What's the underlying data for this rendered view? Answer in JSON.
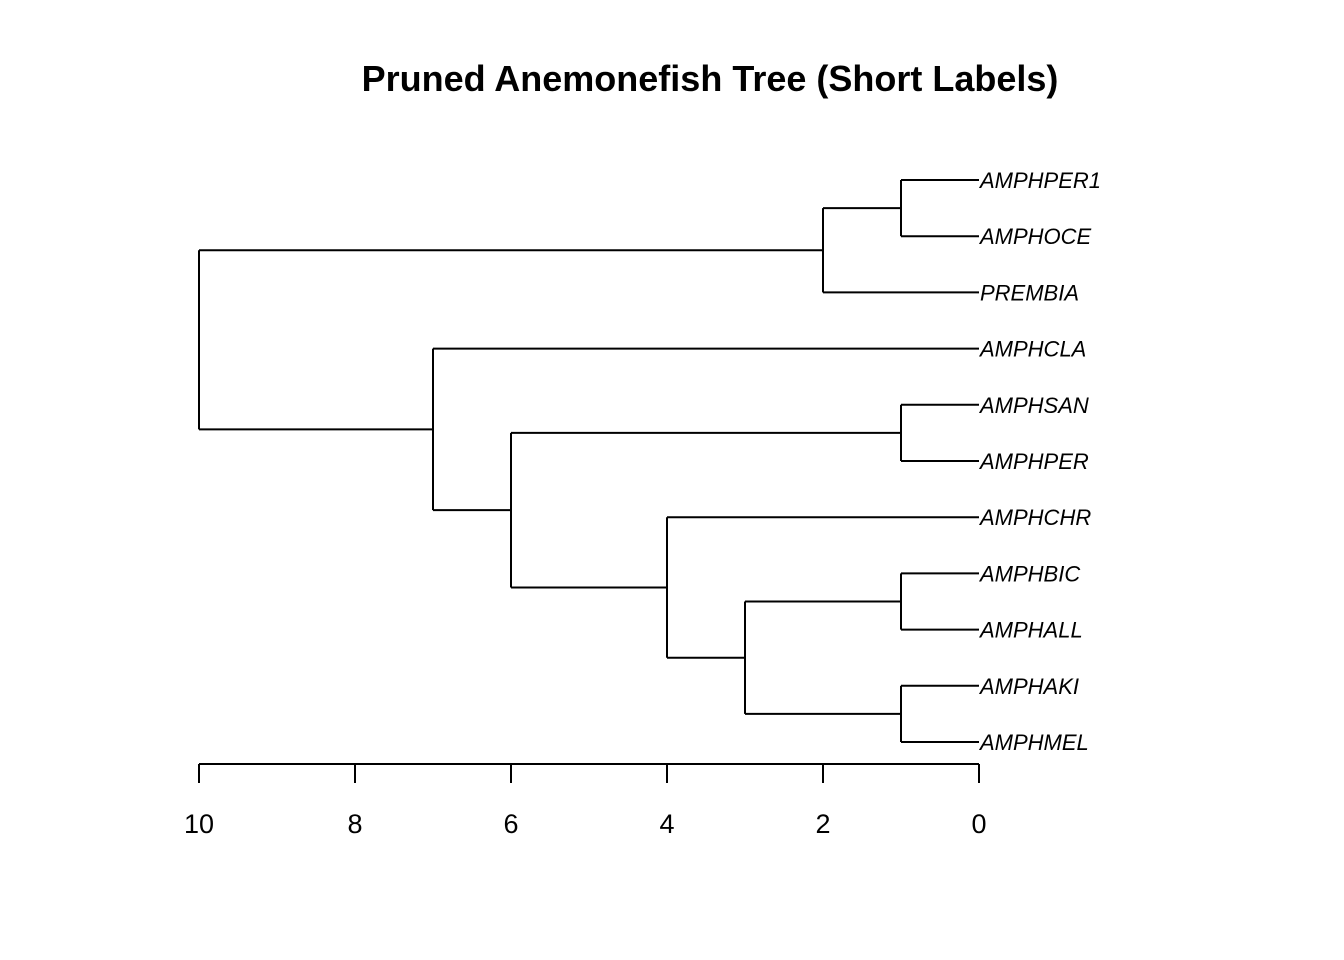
{
  "title": "Pruned Anemonefish Tree (Short Labels)",
  "axis": {
    "min": 0,
    "max": 10,
    "ticks": [
      10,
      8,
      6,
      4,
      2,
      0
    ],
    "direction": "reversed"
  },
  "tree": {
    "name": "root",
    "height": 10,
    "children": [
      {
        "name": "n1",
        "height": 2,
        "children": [
          {
            "name": "n2",
            "height": 1,
            "children": [
              {
                "name": "AMPHPER1",
                "height": 0
              },
              {
                "name": "AMPHOCE",
                "height": 0
              }
            ]
          },
          {
            "name": "PREMBIA",
            "height": 0
          }
        ]
      },
      {
        "name": "n3",
        "height": 7,
        "children": [
          {
            "name": "AMPHCLA",
            "height": 0
          },
          {
            "name": "n4",
            "height": 6,
            "children": [
              {
                "name": "n5",
                "height": 1,
                "children": [
                  {
                    "name": "AMPHSAN",
                    "height": 0
                  },
                  {
                    "name": "AMPHPER",
                    "height": 0
                  }
                ]
              },
              {
                "name": "n6",
                "height": 4,
                "children": [
                  {
                    "name": "AMPHCHR",
                    "height": 0
                  },
                  {
                    "name": "n7",
                    "height": 3,
                    "children": [
                      {
                        "name": "n8",
                        "height": 1,
                        "children": [
                          {
                            "name": "AMPHBIC",
                            "height": 0
                          },
                          {
                            "name": "AMPHALL",
                            "height": 0
                          }
                        ]
                      },
                      {
                        "name": "n9",
                        "height": 1,
                        "children": [
                          {
                            "name": "AMPHAKI",
                            "height": 0
                          },
                          {
                            "name": "AMPHMEL",
                            "height": 0
                          }
                        ]
                      }
                    ]
                  }
                ]
              }
            ]
          }
        ]
      }
    ]
  }
}
